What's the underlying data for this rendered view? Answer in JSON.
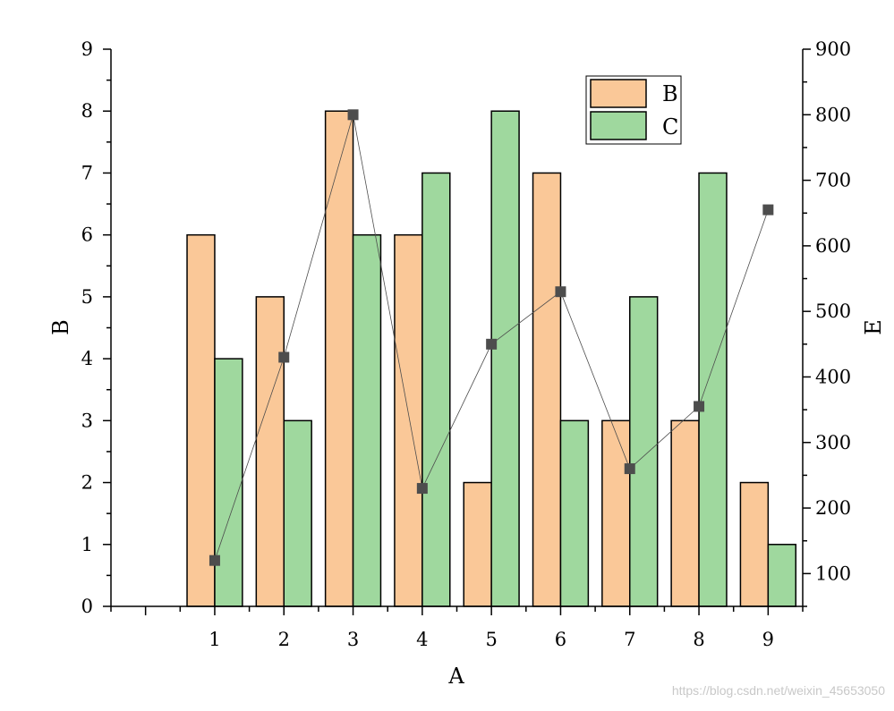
{
  "chart_data": {
    "type": "bar",
    "categories": [
      "1",
      "2",
      "3",
      "4",
      "5",
      "6",
      "7",
      "8",
      "9"
    ],
    "series": [
      {
        "name": "B",
        "type": "bar",
        "axis": "left",
        "values": [
          6,
          5,
          8,
          6,
          2,
          7,
          3,
          3,
          2
        ],
        "color": "#fac898"
      },
      {
        "name": "C",
        "type": "bar",
        "axis": "left",
        "values": [
          4,
          3,
          6,
          7,
          8,
          3,
          5,
          7,
          1
        ],
        "color": "#9fd89e"
      },
      {
        "type": "line",
        "axis": "right",
        "values": [
          120,
          430,
          800,
          230,
          450,
          530,
          260,
          355,
          655
        ],
        "color": "#4d4d4d"
      }
    ],
    "xlabel": "A",
    "ylabel": "B",
    "y2label": "E",
    "xlim": [
      -0.5,
      9.5
    ],
    "ylim": [
      0,
      9
    ],
    "y2lim": [
      50,
      900
    ],
    "yticks": [
      0,
      1,
      2,
      3,
      4,
      5,
      6,
      7,
      8,
      9
    ],
    "y2ticks": [
      100,
      200,
      300,
      400,
      500,
      600,
      700,
      800,
      900
    ],
    "legend": {
      "position": "top-right",
      "entries": [
        "B",
        "C"
      ]
    },
    "grid": false
  },
  "watermark": "https://blog.csdn.net/weixin_45653050"
}
